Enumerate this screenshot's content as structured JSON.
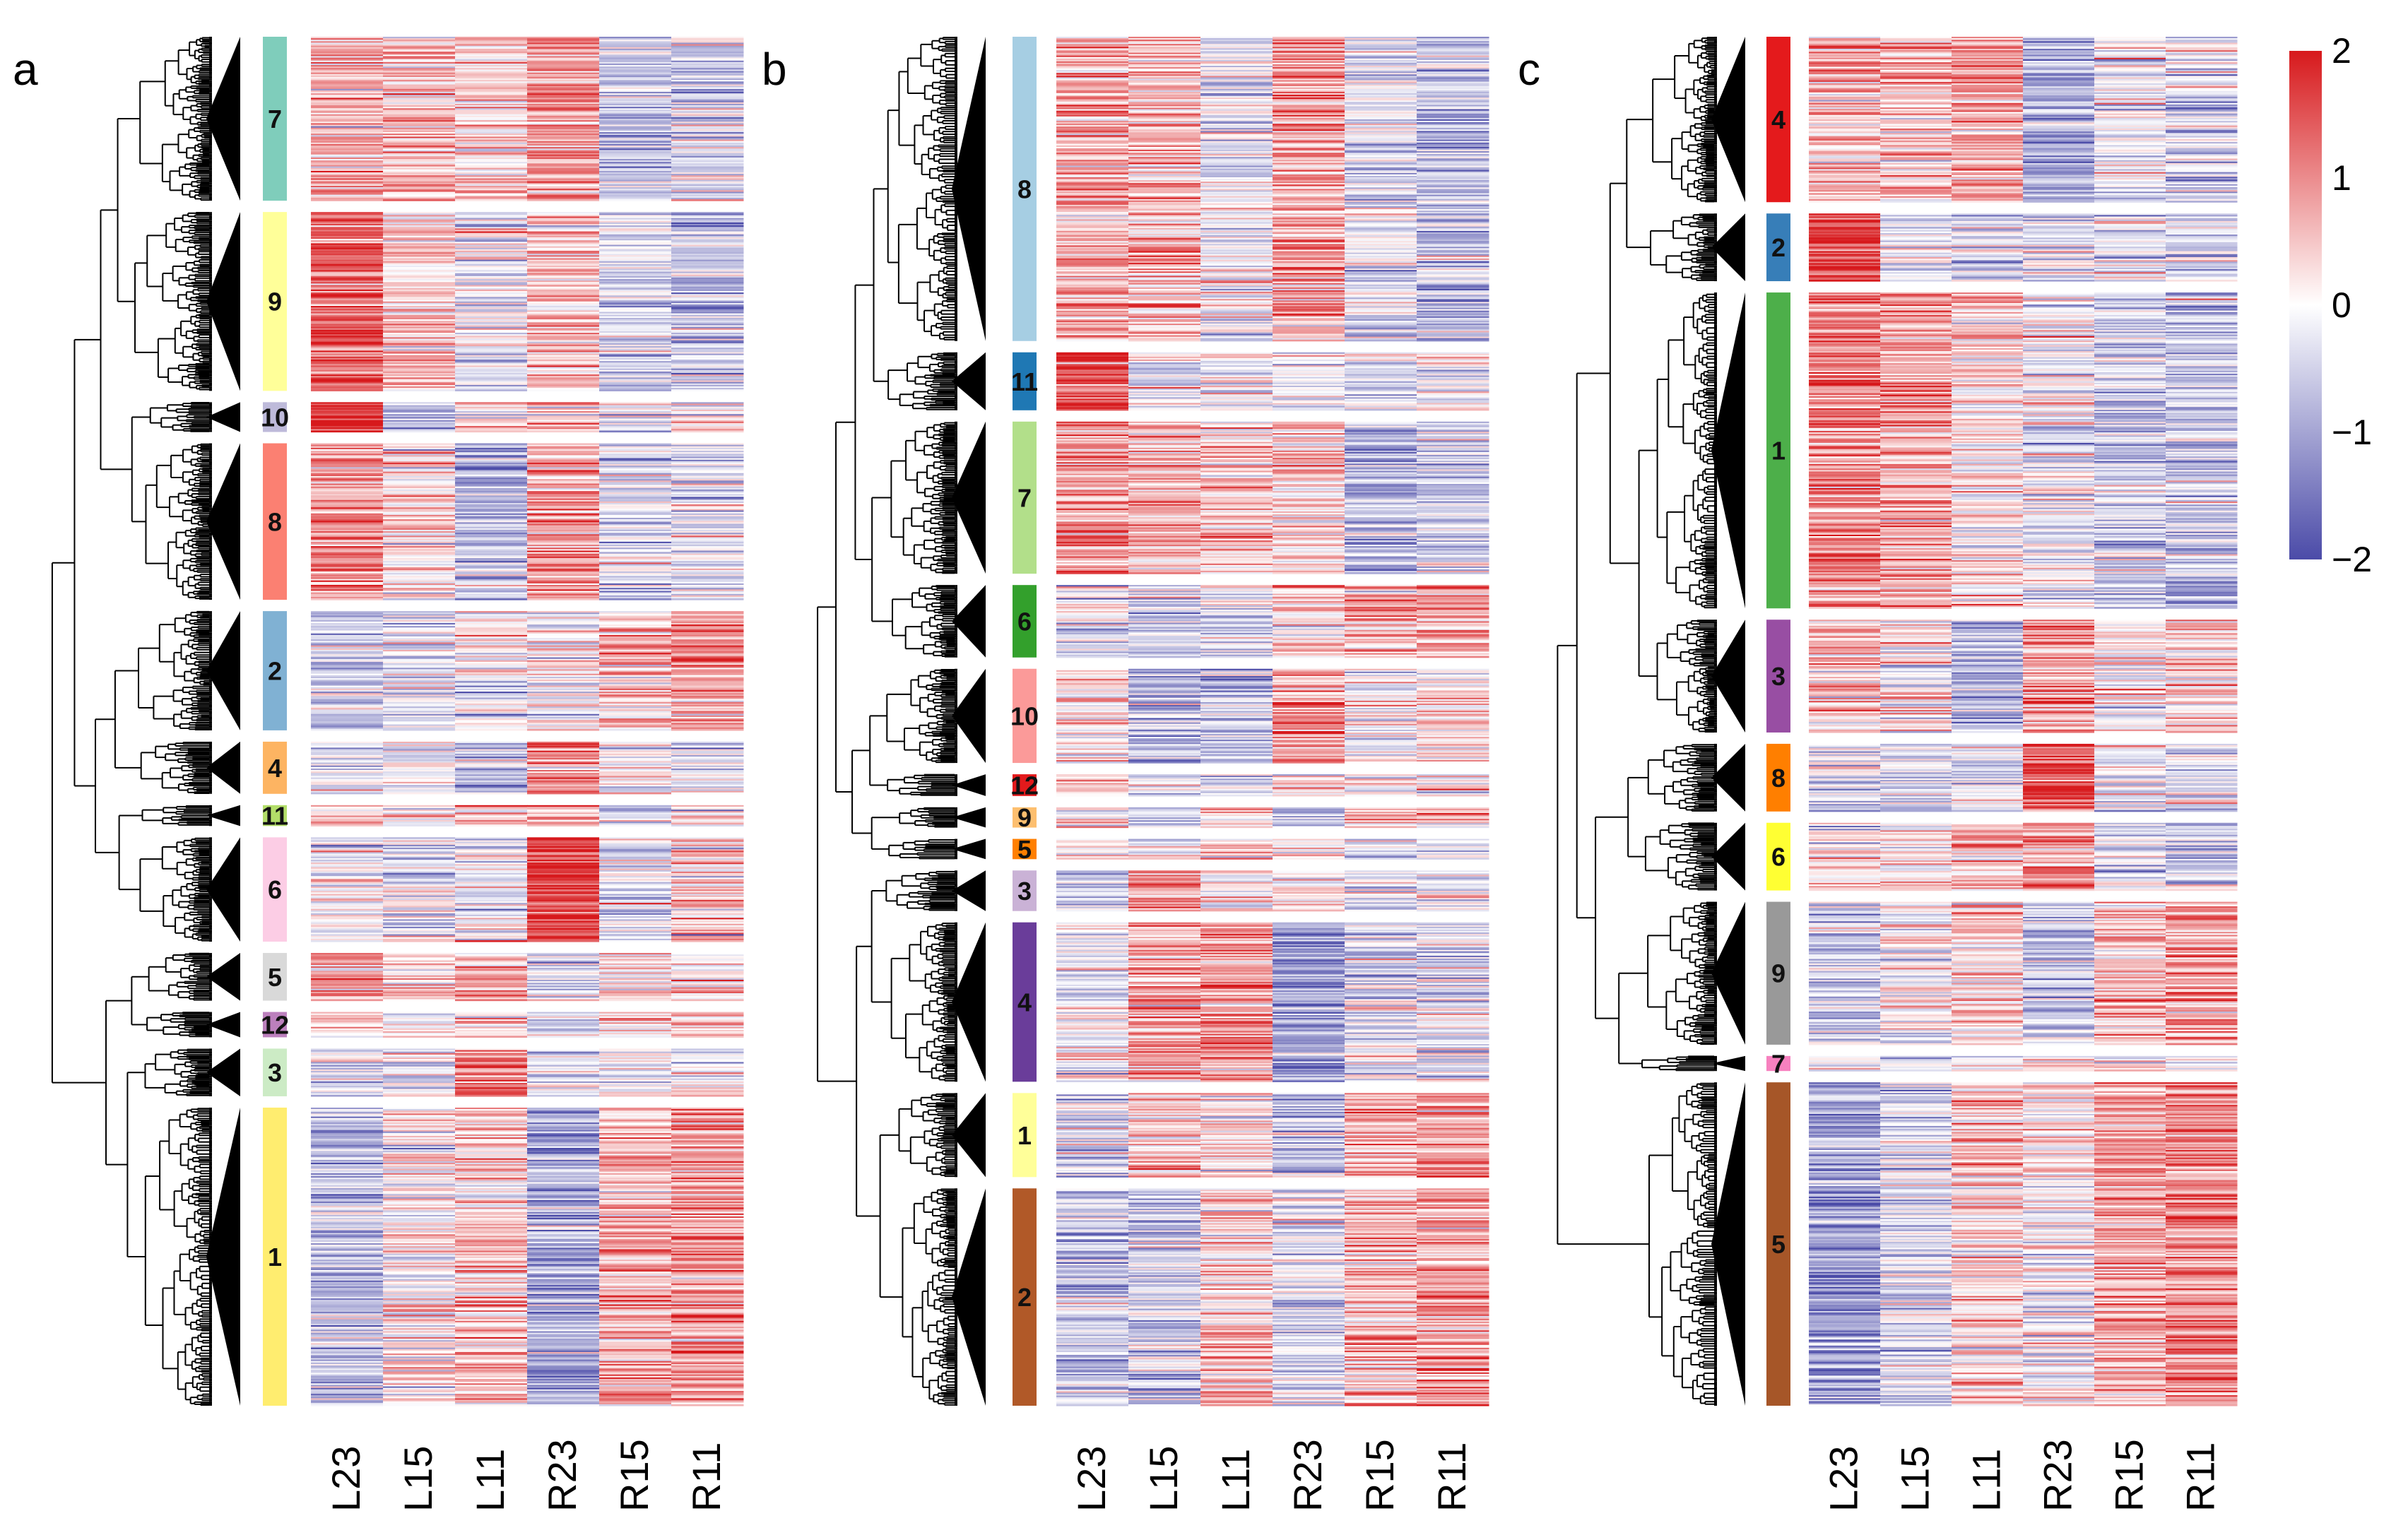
{
  "chart_data": [
    {
      "type": "heatmap",
      "panel": "a",
      "columns": [
        "L23",
        "L15",
        "L11",
        "R23",
        "R15",
        "R11"
      ],
      "clusters": [
        {
          "id": "7",
          "color": "#7fcdbb",
          "rows": 110,
          "mean": [
            0.6,
            0.5,
            0.3,
            0.9,
            -0.6,
            -0.5
          ]
        },
        {
          "id": "9",
          "color": "#ffff99",
          "rows": 120,
          "mean": [
            1.3,
            0.4,
            -0.2,
            0.5,
            -0.4,
            -0.6
          ]
        },
        {
          "id": "10",
          "color": "#bebada",
          "rows": 20,
          "mean": [
            1.6,
            -0.6,
            0.1,
            0.2,
            -0.3,
            0.1
          ]
        },
        {
          "id": "8",
          "color": "#fb8072",
          "rows": 105,
          "mean": [
            1.0,
            0.2,
            -0.8,
            0.8,
            -0.3,
            -0.3
          ]
        },
        {
          "id": "2",
          "color": "#80b1d3",
          "rows": 80,
          "mean": [
            -0.6,
            -0.4,
            -0.1,
            -0.1,
            0.5,
            0.8
          ]
        },
        {
          "id": "4",
          "color": "#fdb462",
          "rows": 35,
          "mean": [
            -0.3,
            0.0,
            -0.6,
            1.2,
            0.0,
            -0.2
          ]
        },
        {
          "id": "11",
          "color": "#b3de69",
          "rows": 14,
          "mean": [
            0.3,
            0.2,
            0.2,
            0.5,
            -0.5,
            0.2
          ]
        },
        {
          "id": "6",
          "color": "#fccde5",
          "rows": 70,
          "mean": [
            -0.1,
            -0.4,
            -0.2,
            1.6,
            -0.2,
            0.3
          ]
        },
        {
          "id": "5",
          "color": "#d9d9d9",
          "rows": 32,
          "mean": [
            0.8,
            0.4,
            0.6,
            -0.3,
            0.1,
            0.1
          ]
        },
        {
          "id": "12",
          "color": "#bc80bd",
          "rows": 17,
          "mean": [
            0.2,
            0.1,
            0.3,
            -0.2,
            0.2,
            0.9
          ]
        },
        {
          "id": "3",
          "color": "#ccebc5",
          "rows": 32,
          "mean": [
            -0.3,
            -0.2,
            1.3,
            -0.2,
            0.0,
            0.1
          ]
        },
        {
          "id": "1",
          "color": "#ffed6f",
          "rows": 200,
          "mean": [
            -0.7,
            0.1,
            0.5,
            -1.0,
            0.6,
            0.9
          ]
        }
      ]
    },
    {
      "type": "heatmap",
      "panel": "b",
      "columns": [
        "L23",
        "L15",
        "L11",
        "R23",
        "R15",
        "R11"
      ],
      "clusters": [
        {
          "id": "8",
          "color": "#a6cee3",
          "rows": 210,
          "mean": [
            0.7,
            0.6,
            -0.2,
            0.8,
            -0.3,
            -0.7
          ]
        },
        {
          "id": "11",
          "color": "#1f78b4",
          "rows": 40,
          "mean": [
            1.5,
            -0.4,
            -0.2,
            -0.2,
            -0.3,
            -0.1
          ]
        },
        {
          "id": "7",
          "color": "#b2df8a",
          "rows": 105,
          "mean": [
            0.9,
            0.6,
            0.4,
            0.4,
            -0.7,
            -0.5
          ]
        },
        {
          "id": "6",
          "color": "#33a02c",
          "rows": 50,
          "mean": [
            -0.2,
            -0.6,
            -0.3,
            0.4,
            0.6,
            0.9
          ]
        },
        {
          "id": "10",
          "color": "#fb9a99",
          "rows": 65,
          "mean": [
            0.2,
            -0.8,
            -0.7,
            0.9,
            -0.1,
            0.2
          ]
        },
        {
          "id": "12",
          "color": "#e31a1c",
          "rows": 15,
          "mean": [
            0.6,
            0.1,
            -0.4,
            0.3,
            0.0,
            0.2
          ]
        },
        {
          "id": "9",
          "color": "#fdbf6f",
          "rows": 14,
          "mean": [
            0.2,
            -0.3,
            0.3,
            -0.4,
            0.5,
            0.3
          ]
        },
        {
          "id": "5",
          "color": "#ff7f00",
          "rows": 14,
          "mean": [
            0.1,
            0.0,
            0.6,
            0.2,
            -0.2,
            -0.1
          ]
        },
        {
          "id": "3",
          "color": "#cab2d6",
          "rows": 28,
          "mean": [
            -0.4,
            1.0,
            0.2,
            0.4,
            -0.2,
            -0.1
          ]
        },
        {
          "id": "4",
          "color": "#6a3d9a",
          "rows": 110,
          "mean": [
            -0.1,
            0.8,
            0.9,
            -1.0,
            -0.3,
            -0.4
          ]
        },
        {
          "id": "1",
          "color": "#ffff99",
          "rows": 58,
          "mean": [
            -0.5,
            0.3,
            0.2,
            -0.8,
            0.6,
            0.8
          ]
        },
        {
          "id": "2",
          "color": "#b15928",
          "rows": 150,
          "mean": [
            -0.6,
            -0.5,
            0.4,
            -0.3,
            0.6,
            0.8
          ]
        }
      ]
    },
    {
      "type": "heatmap",
      "panel": "c",
      "columns": [
        "L23",
        "L15",
        "L11",
        "R23",
        "R15",
        "R11"
      ],
      "clusters": [
        {
          "id": "4",
          "color": "#e41a1c",
          "rows": 110,
          "mean": [
            0.6,
            0.5,
            0.7,
            -0.9,
            -0.2,
            -0.3
          ]
        },
        {
          "id": "2",
          "color": "#377eb8",
          "rows": 45,
          "mean": [
            1.6,
            -0.3,
            -0.3,
            -0.2,
            -0.3,
            -0.3
          ]
        },
        {
          "id": "1",
          "color": "#4daf4a",
          "rows": 210,
          "mean": [
            1.0,
            0.7,
            0.2,
            -0.2,
            -0.6,
            -0.6
          ]
        },
        {
          "id": "3",
          "color": "#984ea3",
          "rows": 75,
          "mean": [
            0.5,
            0.0,
            -0.8,
            0.8,
            0.0,
            0.3
          ]
        },
        {
          "id": "8",
          "color": "#ff7f00",
          "rows": 45,
          "mean": [
            -0.4,
            -0.5,
            -0.3,
            1.4,
            -0.2,
            -0.3
          ]
        },
        {
          "id": "6",
          "color": "#ffff33",
          "rows": 45,
          "mean": [
            0.1,
            0.2,
            0.5,
            0.8,
            -0.4,
            -0.6
          ]
        },
        {
          "id": "9",
          "color": "#999999",
          "rows": 95,
          "mean": [
            -0.5,
            0.0,
            0.4,
            -0.6,
            0.5,
            0.9
          ]
        },
        {
          "id": "7",
          "color": "#f781bf",
          "rows": 10,
          "mean": [
            0.1,
            0.1,
            -0.2,
            0.2,
            0.1,
            0.1
          ]
        },
        {
          "id": "5",
          "color": "#a65628",
          "rows": 215,
          "mean": [
            -1.0,
            -0.4,
            0.4,
            0.0,
            0.7,
            1.0
          ]
        }
      ]
    }
  ],
  "panels": [
    {
      "letter": "a"
    },
    {
      "letter": "b"
    },
    {
      "letter": "c"
    }
  ],
  "legend": {
    "type": "colorbar",
    "range": [
      -2,
      2
    ],
    "ticks": [
      "2",
      "1",
      "0",
      "−1",
      "−2"
    ],
    "colors": {
      "low": "#4b4ba8",
      "mid": "#ffffff",
      "high": "#d7191c"
    }
  }
}
